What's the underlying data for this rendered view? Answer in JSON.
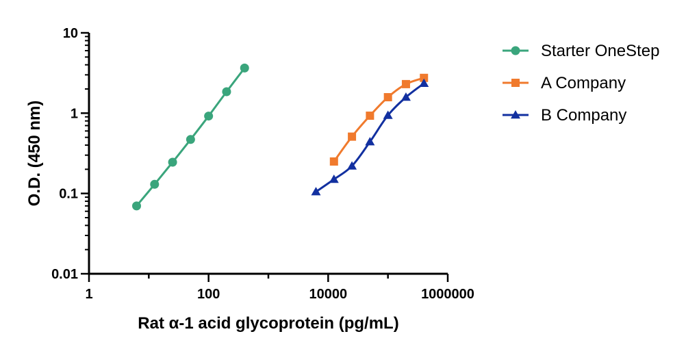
{
  "chart_data": {
    "type": "line",
    "xscale": "log",
    "yscale": "log",
    "xlabel": "Rat α-1 acid glycoprotein (pg/mL)",
    "ylabel": "O.D. (450 nm)",
    "xlim": [
      1,
      1000000
    ],
    "ylim": [
      0.01,
      10
    ],
    "xticks": [
      "1",
      "100",
      "10000",
      "1000000"
    ],
    "yticks": [
      "0.01",
      "0.1",
      "1",
      "10"
    ],
    "legend_position": "right",
    "grid": false,
    "series": [
      {
        "name": "Starter OneStep",
        "color": "#3aa57c",
        "marker": "circle",
        "x": [
          6.25,
          12.5,
          25,
          50,
          100,
          200,
          400
        ],
        "y": [
          0.07,
          0.13,
          0.245,
          0.47,
          0.92,
          1.85,
          3.65
        ]
      },
      {
        "name": "A Company",
        "color": "#f07a2d",
        "marker": "square",
        "x": [
          12500,
          25000,
          50000,
          100000,
          200000,
          400000
        ],
        "y": [
          0.25,
          0.51,
          0.93,
          1.58,
          2.3,
          2.75
        ]
      },
      {
        "name": "B Company",
        "color": "#1230a0",
        "marker": "triangle",
        "x": [
          6250,
          12500,
          25000,
          50000,
          100000,
          200000,
          400000
        ],
        "y": [
          0.105,
          0.15,
          0.22,
          0.44,
          0.94,
          1.58,
          2.35
        ]
      }
    ]
  }
}
